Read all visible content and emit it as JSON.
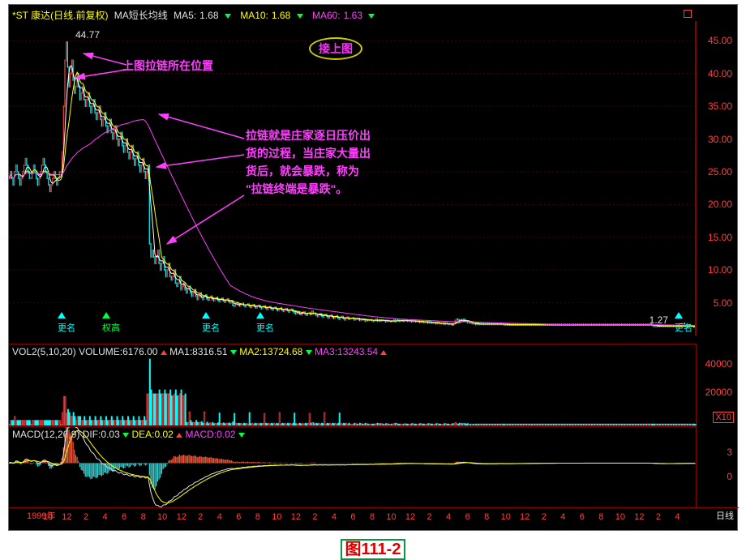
{
  "header": {
    "stock_name": "*ST 康达(日线.前复权)",
    "ma_label": "MA短长均线",
    "ma5_label": "MA5:",
    "ma5_value": "1.68",
    "ma10_label": "MA10:",
    "ma10_value": "1.68",
    "ma60_label": "MA60:",
    "ma60_value": "1.63"
  },
  "colors": {
    "bg": "#000000",
    "text_white": "#e0e0e0",
    "text_yellow": "#ffff00",
    "text_magenta": "#ff40ff",
    "text_cyan": "#00ffff",
    "text_green": "#00ff00",
    "text_red": "#ff3030",
    "axis_red": "#ff4040",
    "grid": "#440000",
    "candle_up_body": "#000000",
    "candle_up_border": "#ff4040",
    "candle_down": "#00ffff",
    "vol_bar_red": "#ff4040",
    "vol_bar_cyan": "#00ffff",
    "ma5_line": "#ffffff",
    "ma10_line": "#ffff00",
    "ma60_line": "#ff40ff",
    "annotation_magenta": "#ff40ff",
    "badge_border": "#cccc00",
    "badge_text": "#ff30ff",
    "caption_red": "#dd0000",
    "arrow_up_red": "#ff4040",
    "arrow_down_cyan": "#00ffff"
  },
  "price_chart": {
    "type": "candlestick_with_ma",
    "ylim": [
      0,
      48
    ],
    "yticks": [
      5.0,
      10.0,
      15.0,
      20.0,
      25.0,
      30.0,
      35.0,
      40.0,
      45.0
    ],
    "peak_label": "44.77",
    "low_label": "1.27",
    "data_points": 500,
    "price_series": [
      24,
      25,
      24,
      23,
      25,
      26,
      25,
      24,
      23,
      24,
      25,
      26,
      27,
      26,
      25,
      24,
      24,
      25,
      26,
      25,
      24,
      23,
      24,
      25,
      26,
      27,
      26,
      25,
      24,
      23,
      22,
      23,
      24,
      25,
      24,
      23,
      24,
      25,
      25,
      28,
      35,
      42,
      44.77,
      41,
      38,
      40,
      42,
      39,
      37,
      38,
      40,
      38,
      36,
      37,
      38,
      36,
      35,
      36,
      37,
      35,
      34,
      35,
      36,
      34,
      33,
      34,
      35,
      33,
      32,
      33,
      34,
      32,
      31,
      32,
      33,
      31,
      30,
      31,
      32,
      30,
      29,
      30,
      31,
      29,
      28,
      29,
      30,
      28,
      27,
      28,
      29,
      27,
      26,
      27,
      28,
      26,
      25,
      26,
      27,
      25,
      24,
      25,
      26,
      14,
      12,
      13,
      12,
      11,
      12,
      13,
      11,
      10,
      11,
      12,
      10,
      9,
      10,
      11,
      9,
      8.5,
      9,
      10,
      8,
      7.5,
      8,
      9,
      7,
      7.5,
      8,
      7,
      6.5,
      7,
      7.5,
      6.5,
      6,
      6.5,
      7,
      6,
      5.5,
      6,
      6.5,
      5.8,
      5.5,
      6,
      6.2,
      5.6,
      5.4,
      5.8,
      6,
      5.5,
      5.3,
      5.6,
      5.8,
      5.4,
      5.2,
      5.5,
      5.7,
      5.3,
      5.1,
      5.4,
      5.6,
      5.2,
      5,
      5.3,
      4.6,
      4.5,
      4.8,
      5,
      4.7,
      4.5,
      4.8,
      4.9,
      4.6,
      4.4,
      4.7,
      4.8,
      4.5,
      4.3,
      4.6,
      4.7,
      4.4,
      4.2,
      4.5,
      4.6,
      4.3,
      4.1,
      4.4,
      4.5,
      4.2,
      4,
      4.3,
      4.4,
      4.1,
      3.9,
      4.2,
      4.3,
      4,
      3.8,
      4.1,
      4.2,
      3.9,
      3.7,
      4,
      4.1,
      3.8,
      3.6,
      3.9,
      4,
      3.7,
      3.5,
      3.3,
      3.4,
      3.6,
      3.3,
      3.2,
      3.5,
      3.6,
      3.3,
      3.1,
      3.4,
      3.5,
      3.2,
      3.7,
      3.3,
      3.4,
      3.1,
      2.9,
      3.2,
      3.3,
      3,
      2.8,
      3.1,
      3.2,
      2.9,
      2.7,
      3,
      3.1,
      2.8,
      2.6,
      2.9,
      3,
      2.7,
      2.5,
      2.8,
      2.9,
      2.6,
      2.4,
      2.7,
      2.8,
      2.5,
      2.6,
      2.6,
      2.7,
      2.4,
      2.6,
      2.5,
      2.6,
      2.3,
      2.5,
      2.4,
      2.5,
      2.2,
      2.4,
      2.3,
      2.4,
      2.4,
      2.3,
      2.2,
      2.3,
      2.5,
      2.2,
      2.4,
      2.2,
      2.4,
      2.3,
      2.3,
      2.1,
      2.3,
      2.2,
      2.2,
      2.1,
      2.2,
      2.4,
      2.1,
      2.4,
      2.3,
      2.2,
      2.3,
      2.3,
      2.2,
      2.4,
      2.3,
      2.2,
      2.2,
      2.3,
      2.1,
      2.3,
      2.2,
      2.1,
      2.1,
      2.2,
      2,
      2.2,
      2.1,
      2,
      2,
      2.1,
      1.9,
      2.1,
      2,
      1.9,
      1.9,
      2,
      1.8,
      2,
      1.9,
      1.8,
      1.8,
      1.9,
      1.7,
      1.9,
      1.8,
      1.7,
      1.7,
      1.8,
      1.6,
      1.8,
      2.3,
      2.5,
      2.4,
      2.1,
      2.4,
      2.2,
      2.5,
      2.3,
      2.2,
      2,
      2,
      1.9,
      1.9,
      1.8,
      1.8,
      1.7,
      1.8,
      1.7,
      1.8,
      1.7,
      1.8,
      1.7,
      1.8,
      1.7,
      1.8,
      1.7,
      1.8,
      1.7,
      1.8,
      1.7,
      1.8,
      1.7,
      1.8,
      1.7,
      1.8,
      1.7,
      1.6,
      1.7,
      1.6,
      1.7,
      1.6,
      1.7,
      1.6,
      1.7,
      1.6,
      1.7,
      1.6,
      1.7,
      1.6,
      1.7,
      1.6,
      1.7,
      1.6,
      1.7,
      1.6,
      1.7,
      1.6,
      1.7,
      1.6,
      1.7,
      1.6,
      1.7,
      1.6,
      1.7,
      1.6,
      1.7,
      1.6,
      1.7,
      1.6,
      1.7,
      1.6,
      1.7,
      1.6,
      1.7,
      1.6,
      1.7,
      1.6,
      1.7,
      1.6,
      1.7,
      1.6,
      1.7,
      1.6,
      1.7,
      1.6,
      1.7,
      1.6,
      1.7,
      1.6,
      1.7,
      1.6,
      1.7,
      1.6,
      1.7,
      1.6,
      1.7,
      1.6,
      1.7,
      1.6,
      1.7,
      1.6,
      1.7,
      1.6,
      1.7,
      1.6,
      1.7,
      1.6,
      1.7,
      1.6,
      1.7,
      1.6,
      1.7,
      1.6,
      1.7,
      1.6,
      1.7,
      1.6,
      1.7,
      1.6,
      1.7,
      1.6,
      1.7,
      1.6,
      1.7,
      1.6,
      1.7,
      1.6,
      1.7,
      1.6,
      1.7,
      1.6,
      1.7,
      1.6,
      1.7,
      1.6,
      1.7,
      1.6,
      1.7,
      1.6,
      1.7,
      1.6,
      1.7,
      1.6,
      1.7,
      1.6,
      1.5,
      1.4,
      1.5,
      1.4,
      1.5,
      1.4,
      1.5,
      1.4,
      1.5,
      1.4,
      1.5,
      1.4,
      1.5,
      1.4,
      1.5,
      1.4,
      1.5,
      1.4,
      1.5,
      1.4,
      1.5,
      1.4,
      1.5,
      1.4,
      1.5,
      1.4,
      1.5,
      1.4,
      1.5,
      1.4,
      1.3,
      1.27
    ]
  },
  "volume_chart": {
    "label": "VOL2(5,10,20)",
    "volume_label": "VOLUME:",
    "volume_value": "6176.00",
    "ma1_label": "MA1:",
    "ma1_value": "8316.51",
    "ma2_label": "MA2:",
    "ma2_value": "13724.68",
    "ma3_label": "MA3:",
    "ma3_value": "13243.54",
    "ylim": [
      0,
      50000
    ],
    "yticks": [
      20000,
      40000
    ],
    "x10_label": "X10"
  },
  "macd_chart": {
    "label": "MACD(12,26,9)",
    "dif_label": "DIF:",
    "dif_value": "0.03",
    "dea_label": "DEA:",
    "dea_value": "0.02",
    "macd_label": "MACD:",
    "macd_value": "0.02",
    "ylim": [
      -5,
      4
    ],
    "yticks": [
      0.0,
      3.0
    ]
  },
  "xaxis": {
    "year_label": "1999年",
    "ticks": [
      "10",
      "12",
      "2",
      "4",
      "6",
      "8",
      "10",
      "12",
      "2",
      "4",
      "6",
      "8",
      "10",
      "12",
      "2",
      "4",
      "6",
      "8",
      "10",
      "12",
      "2",
      "4",
      "6",
      "8",
      "10",
      "12",
      "2",
      "4",
      "6",
      "8",
      "10",
      "12",
      "2",
      "4"
    ],
    "right_label": "日线"
  },
  "annotations": {
    "badge_text": "接上图",
    "anno1": "上图拉链所在位置",
    "anno2_lines": [
      "拉链就是庄家逐日压价出",
      "货的过程，当庄家大量出",
      "货后，就会暴跌，称为",
      "\"拉链终端是暴跌\"。"
    ]
  },
  "markers": {
    "label_gengming": "更名",
    "label_quangao": "权高"
  },
  "caption": "图111-2"
}
